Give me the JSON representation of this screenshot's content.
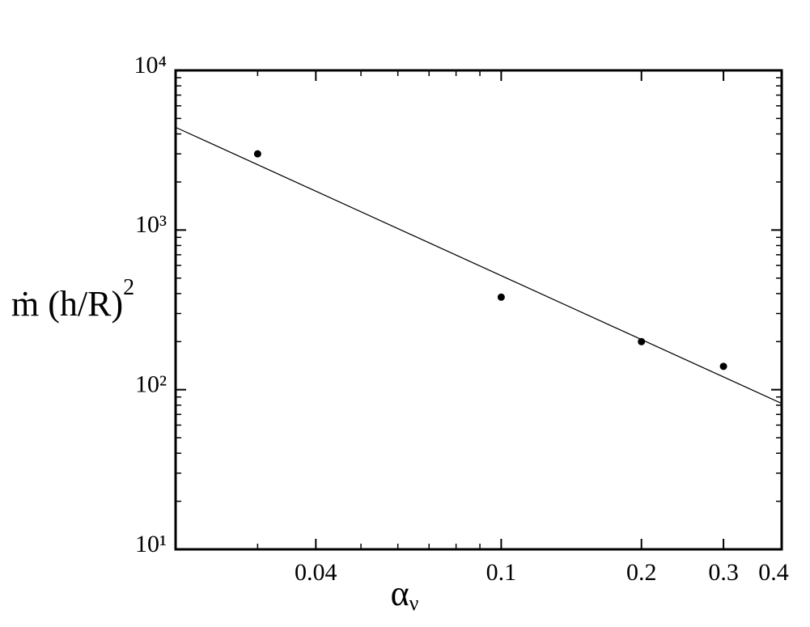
{
  "chart_data": {
    "type": "scatter",
    "xlabel": "α",
    "xlabel_subscript": "ν",
    "ylabel": "ṁ (h/R)",
    "ylabel_superscript": "2",
    "xscale": "log",
    "yscale": "log",
    "xlim": [
      0.02,
      0.4
    ],
    "ylim": [
      10,
      10000
    ],
    "xticks": [
      0.04,
      0.1,
      0.2,
      0.3,
      0.4
    ],
    "xminor": [
      0.03,
      0.05,
      0.06,
      0.07,
      0.08,
      0.09
    ],
    "yticks": [
      {
        "value": 10,
        "label": "10¹"
      },
      {
        "value": 100,
        "label": "10²"
      },
      {
        "value": 1000,
        "label": "10³"
      },
      {
        "value": 10000,
        "label": "10⁴"
      }
    ],
    "yminor": [
      20,
      30,
      40,
      50,
      60,
      70,
      80,
      90,
      200,
      300,
      400,
      500,
      600,
      700,
      800,
      900,
      2000,
      3000,
      4000,
      5000,
      6000,
      7000,
      8000,
      9000
    ],
    "series": [
      {
        "mode": "line",
        "color": "#000000",
        "x": [
          0.02,
          0.4
        ],
        "values": [
          4400,
          82
        ]
      },
      {
        "mode": "markers",
        "color": "#000000",
        "x": [
          0.03,
          0.1,
          0.2,
          0.3
        ],
        "values": [
          3000,
          380,
          200,
          140
        ]
      }
    ]
  }
}
